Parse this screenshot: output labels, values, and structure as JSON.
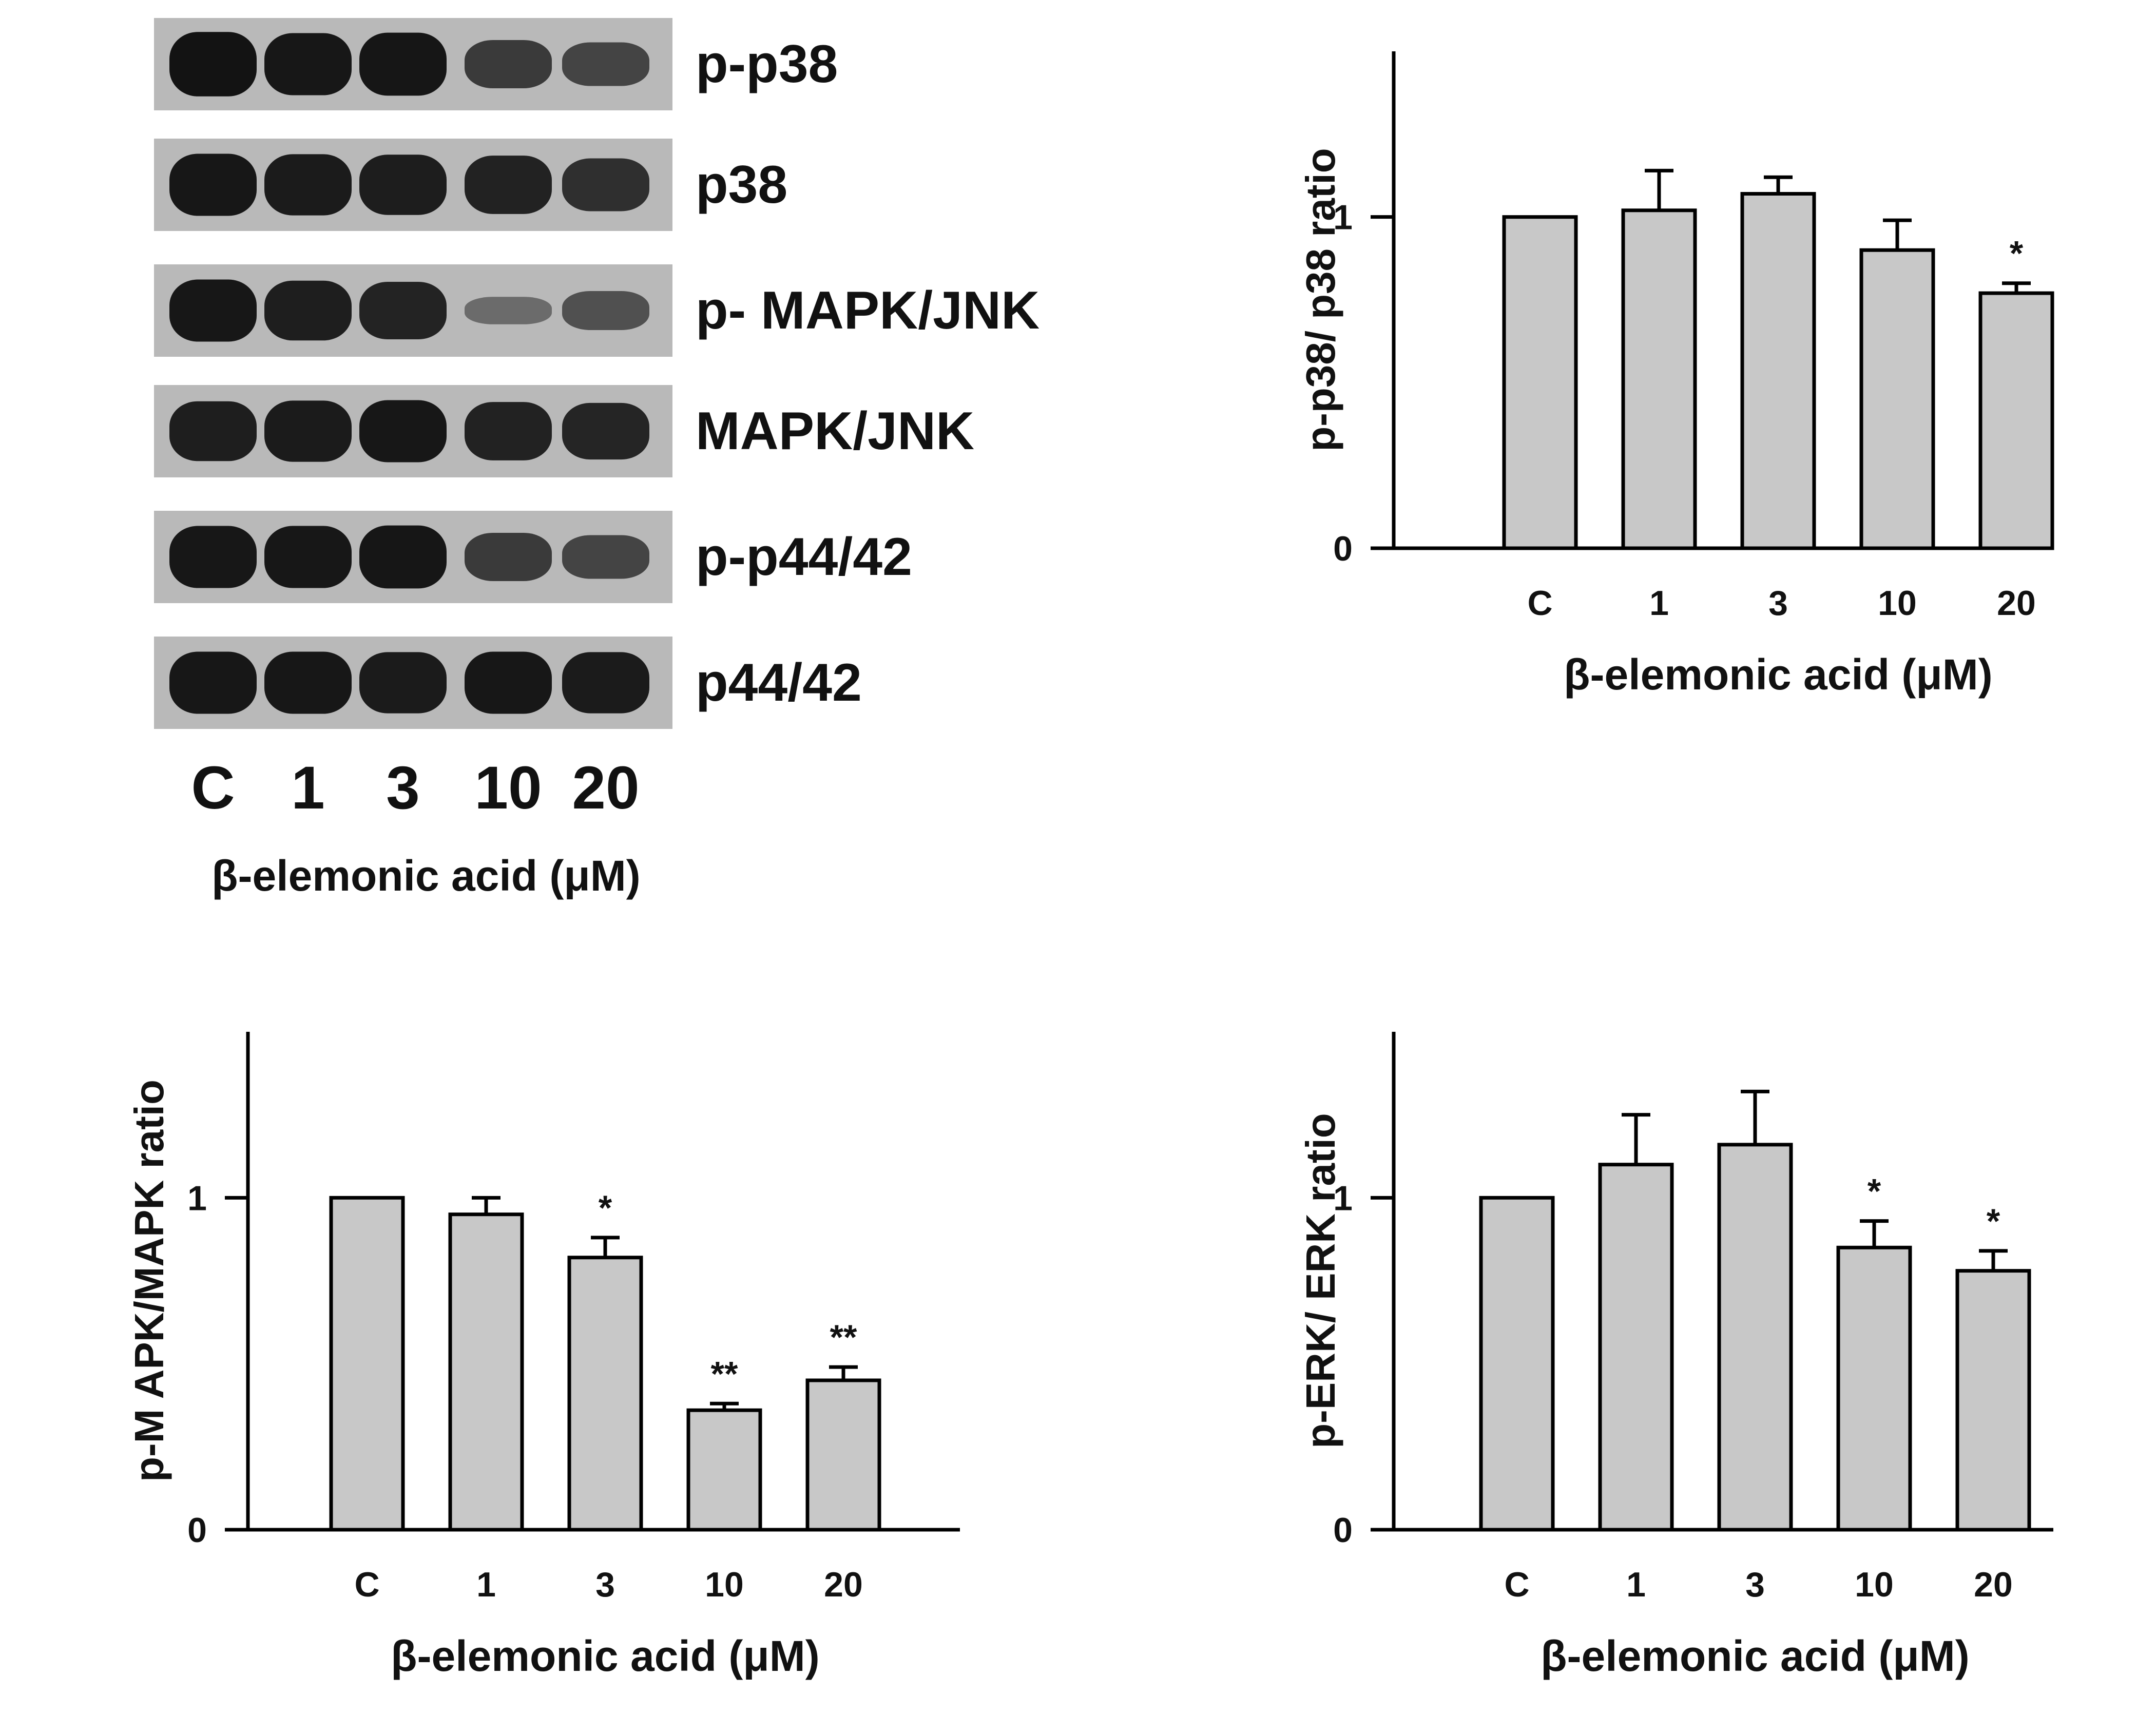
{
  "blot": {
    "labels": [
      "p-p38",
      "p38",
      "p- MAPK/JNK",
      "MAPK/JNK",
      "p-p44/42",
      "p44/42"
    ],
    "lanes": [
      "C",
      "1",
      "3",
      "10",
      "20"
    ],
    "xlabel": "β-elemonic acid (μM)",
    "band_intensity": [
      [
        0.95,
        0.9,
        0.92,
        0.6,
        0.5
      ],
      [
        0.9,
        0.88,
        0.86,
        0.82,
        0.7
      ],
      [
        0.9,
        0.85,
        0.8,
        0.15,
        0.4
      ],
      [
        0.85,
        0.88,
        0.9,
        0.82,
        0.78
      ],
      [
        0.9,
        0.9,
        0.92,
        0.6,
        0.5
      ],
      [
        0.9,
        0.9,
        0.88,
        0.9,
        0.88
      ]
    ]
  },
  "colors": {
    "bar_fill": "#c8c8c8",
    "bar_stroke": "#000000",
    "blot_background": "#b9b9b9",
    "band": "#0d0d0d",
    "text": "#111111"
  },
  "chart_data": [
    {
      "type": "bar",
      "title": "",
      "xlabel": "β-elemonic acid (μM)",
      "ylabel": "p-p38/ p38 ratio",
      "categories": [
        "C",
        "1",
        "3",
        "10",
        "20"
      ],
      "values": [
        1.0,
        1.02,
        1.07,
        0.9,
        0.77
      ],
      "errors": [
        0.0,
        0.12,
        0.05,
        0.09,
        0.03
      ],
      "significance": [
        "",
        "",
        "",
        "",
        "*"
      ],
      "yticks": [
        0,
        1
      ],
      "ylim": [
        0,
        1.5
      ],
      "grid": false
    },
    {
      "type": "bar",
      "title": "",
      "xlabel": "β-elemonic acid (μM)",
      "ylabel": "p-M APK/MAPK ratio",
      "categories": [
        "C",
        "1",
        "3",
        "10",
        "20"
      ],
      "values": [
        1.0,
        0.95,
        0.82,
        0.36,
        0.45
      ],
      "errors": [
        0.0,
        0.05,
        0.06,
        0.02,
        0.04
      ],
      "significance": [
        "",
        "",
        "*",
        "**",
        "**"
      ],
      "yticks": [
        0,
        1
      ],
      "ylim": [
        0,
        1.5
      ],
      "grid": false
    },
    {
      "type": "bar",
      "title": "",
      "xlabel": "β-elemonic acid (μM)",
      "ylabel": "p-ERK/ ERK ratio",
      "categories": [
        "C",
        "1",
        "3",
        "10",
        "20"
      ],
      "values": [
        1.0,
        1.1,
        1.16,
        0.85,
        0.78
      ],
      "errors": [
        0.0,
        0.15,
        0.16,
        0.08,
        0.06
      ],
      "significance": [
        "",
        "",
        "",
        "*",
        "*"
      ],
      "yticks": [
        0,
        1
      ],
      "ylim": [
        0,
        1.5
      ],
      "grid": false
    }
  ]
}
